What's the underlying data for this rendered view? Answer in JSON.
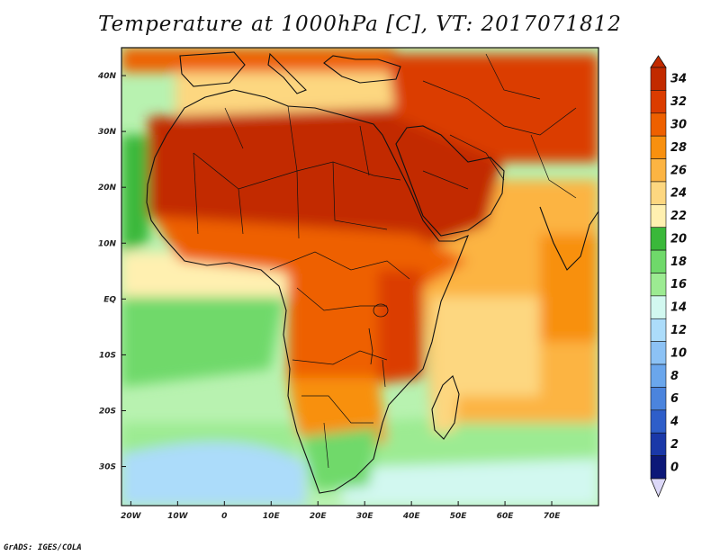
{
  "title": "Temperature at 1000hPa [C], VT: 2017071812",
  "credit": "GrADS: IGES/COLA",
  "axes": {
    "lon_ticks": [
      "20W",
      "10W",
      "0",
      "10E",
      "20E",
      "30E",
      "40E",
      "50E",
      "60E",
      "70E"
    ],
    "lon_values": [
      -20,
      -10,
      0,
      10,
      20,
      30,
      40,
      50,
      60,
      70
    ],
    "lat_ticks": [
      "40N",
      "30N",
      "20N",
      "10N",
      "EQ",
      "10S",
      "20S",
      "30S"
    ],
    "lat_values": [
      40,
      30,
      20,
      10,
      0,
      -10,
      -20,
      -30
    ],
    "lon_range": [
      -22,
      80
    ],
    "lat_range": [
      -37,
      45
    ]
  },
  "colorbar": {
    "labels": [
      "34",
      "32",
      "30",
      "28",
      "26",
      "24",
      "22",
      "20",
      "18",
      "16",
      "14",
      "12",
      "10",
      "8",
      "6",
      "4",
      "2",
      "0"
    ],
    "colors": [
      "#c22a00",
      "#db3c00",
      "#ee6000",
      "#f8900f",
      "#fcb443",
      "#fdd780",
      "#fff0b0",
      "#3ab83a",
      "#6fd96a",
      "#9ceb92",
      "#d2f8f0",
      "#acdcfa",
      "#8cc2f5",
      "#6aa6ec",
      "#4b84dd",
      "#2e5ec9",
      "#1a38a8",
      "#0c1878"
    ],
    "overflow_high_color": "#c22a00",
    "overflow_low_color": "#dcd8f8"
  }
}
